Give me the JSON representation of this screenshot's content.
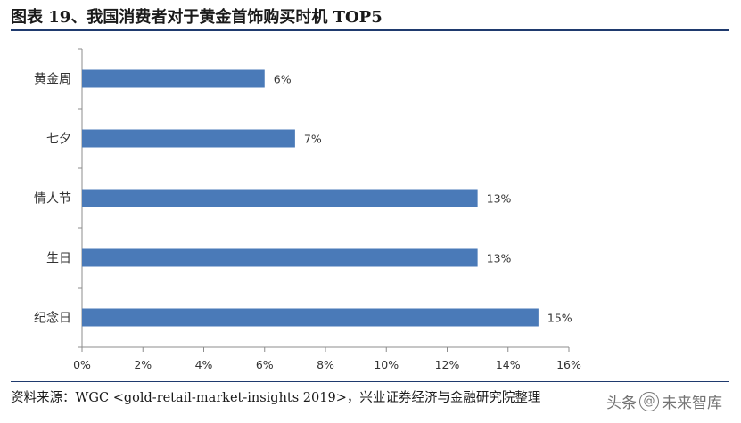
{
  "header": {
    "title": "图表 19、我国消费者对于黄金首饰购买时机 TOP5"
  },
  "footer": {
    "source": "资料来源：WGC <gold-retail-market-insights 2019>，兴业证券经济与金融研究院整理",
    "watermark_prefix": "头条",
    "watermark_name": "未来智库"
  },
  "chart_data": {
    "type": "bar",
    "orientation": "horizontal",
    "categories": [
      "黄金周",
      "七夕",
      "情人节",
      "生日",
      "纪念日"
    ],
    "values": [
      6,
      7,
      13,
      13,
      15
    ],
    "value_labels": [
      "6%",
      "7%",
      "13%",
      "13%",
      "15%"
    ],
    "xlim": [
      0,
      16
    ],
    "xticks": [
      0,
      2,
      4,
      6,
      8,
      10,
      12,
      14,
      16
    ],
    "xtick_labels": [
      "0%",
      "2%",
      "4%",
      "6%",
      "8%",
      "10%",
      "12%",
      "14%",
      "16%"
    ],
    "bar_color": "#4a7ab8",
    "grid": false
  }
}
